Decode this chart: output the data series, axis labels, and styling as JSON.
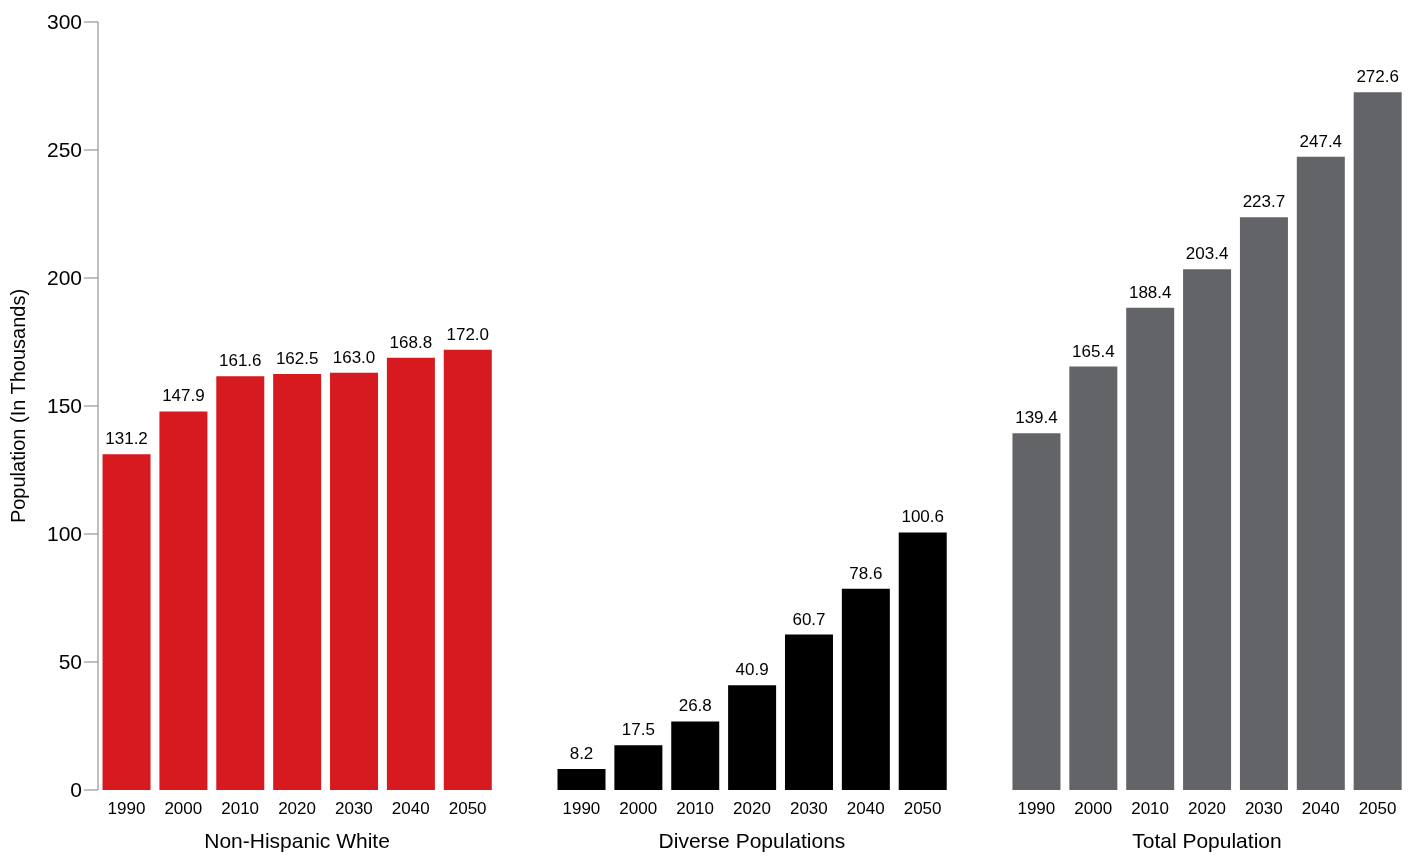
{
  "chart_data": {
    "type": "bar",
    "ylabel": "Population (In Thousands)",
    "categories": [
      "1990",
      "2000",
      "2010",
      "2020",
      "2030",
      "2040",
      "2050",
      null,
      "1990",
      "2000",
      "2010",
      "2020",
      "2030",
      "2040",
      "2050",
      null,
      "1990",
      "2000",
      "2010",
      "2020",
      "2030",
      "2040",
      "2050"
    ],
    "series": [
      {
        "name": "Non-Hispanic White",
        "color": "#d71920",
        "values": [
          131.2,
          147.9,
          161.6,
          162.5,
          163.0,
          168.8,
          172.0,
          null,
          null,
          null,
          null,
          null,
          null,
          null,
          null,
          null,
          null,
          null,
          null,
          null,
          null,
          null,
          null
        ],
        "value_labels": [
          "131.2",
          "147.9",
          "161.6",
          "162.5",
          "163.0",
          "168.8",
          "172.0",
          null,
          null,
          null,
          null,
          null,
          null,
          null,
          null,
          null,
          null,
          null,
          null,
          null,
          null,
          null,
          null
        ]
      },
      {
        "name": "Diverse Populations",
        "color": "#000000",
        "values": [
          null,
          null,
          null,
          null,
          null,
          null,
          null,
          null,
          8.2,
          17.5,
          26.8,
          40.9,
          60.7,
          78.6,
          100.6,
          null,
          null,
          null,
          null,
          null,
          null,
          null,
          null
        ],
        "value_labels": [
          null,
          null,
          null,
          null,
          null,
          null,
          null,
          null,
          "8.2",
          "17.5",
          "26.8",
          "40.9",
          "60.7",
          "78.6",
          "100.6",
          null,
          null,
          null,
          null,
          null,
          null,
          null,
          null
        ]
      },
      {
        "name": "Total Population",
        "color": "#636468",
        "values": [
          null,
          null,
          null,
          null,
          null,
          null,
          null,
          null,
          null,
          null,
          null,
          null,
          null,
          null,
          null,
          null,
          139.4,
          165.4,
          188.4,
          203.4,
          223.7,
          247.4,
          272.6
        ],
        "value_labels": [
          null,
          null,
          null,
          null,
          null,
          null,
          null,
          null,
          null,
          null,
          null,
          null,
          null,
          null,
          null,
          null,
          "139.4",
          "165.4",
          "188.4",
          "203.4",
          "223.7",
          "247.4",
          "272.6"
        ]
      }
    ],
    "ylim": [
      0,
      300
    ],
    "yticks": [
      0,
      50,
      100,
      150,
      200,
      250,
      300
    ],
    "grid": false,
    "legend": false
  }
}
